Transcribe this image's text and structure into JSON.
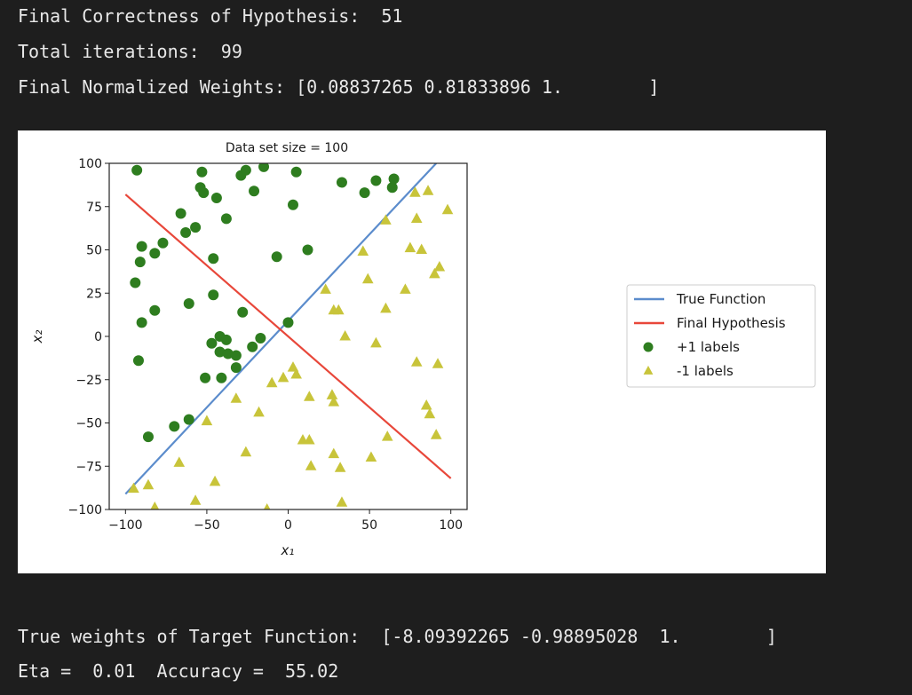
{
  "output": {
    "correctness_line": "Final Correctness of Hypothesis:  51",
    "iterations_line": "Total iterations:  99",
    "weights_line": "Final Normalized Weights: [0.08837265 0.81833896 1.        ]",
    "true_weights_line": "True weights of Target Function:  [-8.09392265 -0.98895028  1.        ]",
    "eta_line": "Eta =  0.01  Accuracy =  55.02"
  },
  "chart_data": {
    "type": "scatter",
    "title": "Data set size = 100",
    "xlabel": "x₁",
    "ylabel": "x₂",
    "xlim": [
      -110,
      110
    ],
    "ylim": [
      -100,
      100
    ],
    "xticks": [
      -100,
      -50,
      0,
      50,
      100
    ],
    "yticks": [
      -100,
      -75,
      -50,
      -25,
      0,
      25,
      50,
      75,
      100
    ],
    "xtick_labels": [
      "−100",
      "−50",
      "0",
      "50",
      "100"
    ],
    "ytick_labels": [
      "−100",
      "−75",
      "−50",
      "−25",
      "0",
      "25",
      "50",
      "75",
      "100"
    ],
    "grid": false,
    "legend_position": "right",
    "legend": [
      {
        "label": "True Function",
        "marker": "line",
        "color": "#5b8ccc"
      },
      {
        "label": "Final Hypothesis",
        "marker": "line",
        "color": "#e8473a"
      },
      {
        "label": "+1 labels",
        "marker": "circle",
        "color": "#2e7d1f"
      },
      {
        "label": "-1 labels",
        "marker": "triangle",
        "color": "#c8c43a"
      }
    ],
    "lines": [
      {
        "name": "True Function",
        "color": "#5b8ccc",
        "x": [
          -100,
          91
        ],
        "y": [
          -91,
          100
        ]
      },
      {
        "name": "Final Hypothesis",
        "color": "#e8473a",
        "x": [
          -100,
          100
        ],
        "y": [
          82,
          -82
        ]
      }
    ],
    "series": [
      {
        "name": "+1 labels",
        "marker": "circle",
        "color": "#2e7d1f",
        "points": [
          [
            -93,
            96
          ],
          [
            -53,
            95
          ],
          [
            -29,
            93
          ],
          [
            -26,
            96
          ],
          [
            -15,
            98
          ],
          [
            5,
            95
          ],
          [
            33,
            89
          ],
          [
            47,
            83
          ],
          [
            54,
            90
          ],
          [
            64,
            86
          ],
          [
            65,
            91
          ],
          [
            -54,
            86
          ],
          [
            -52,
            83
          ],
          [
            -44,
            80
          ],
          [
            -21,
            84
          ],
          [
            3,
            76
          ],
          [
            -66,
            71
          ],
          [
            -38,
            68
          ],
          [
            -57,
            63
          ],
          [
            -63,
            60
          ],
          [
            -90,
            52
          ],
          [
            -77,
            54
          ],
          [
            -82,
            48
          ],
          [
            -91,
            43
          ],
          [
            -46,
            45
          ],
          [
            -7,
            46
          ],
          [
            12,
            50
          ],
          [
            -94,
            31
          ],
          [
            -46,
            24
          ],
          [
            -61,
            19
          ],
          [
            -82,
            15
          ],
          [
            -28,
            14
          ],
          [
            -90,
            8
          ],
          [
            0,
            8
          ],
          [
            -42,
            0
          ],
          [
            -47,
            -4
          ],
          [
            -38,
            -2
          ],
          [
            -17,
            -1
          ],
          [
            -22,
            -6
          ],
          [
            -42,
            -9
          ],
          [
            -37,
            -10
          ],
          [
            -32,
            -11
          ],
          [
            -92,
            -14
          ],
          [
            -32,
            -18
          ],
          [
            -51,
            -24
          ],
          [
            -41,
            -24
          ],
          [
            -61,
            -48
          ],
          [
            -70,
            -52
          ],
          [
            -86,
            -58
          ]
        ]
      },
      {
        "name": "-1 labels",
        "marker": "triangle",
        "color": "#c8c43a",
        "points": [
          [
            78,
            83
          ],
          [
            86,
            84
          ],
          [
            98,
            73
          ],
          [
            60,
            67
          ],
          [
            79,
            68
          ],
          [
            75,
            51
          ],
          [
            82,
            50
          ],
          [
            46,
            49
          ],
          [
            90,
            36
          ],
          [
            93,
            40
          ],
          [
            49,
            33
          ],
          [
            72,
            27
          ],
          [
            23,
            27
          ],
          [
            28,
            15
          ],
          [
            31,
            15
          ],
          [
            60,
            16
          ],
          [
            35,
            0
          ],
          [
            54,
            -4
          ],
          [
            79,
            -15
          ],
          [
            92,
            -16
          ],
          [
            3,
            -18
          ],
          [
            5,
            -22
          ],
          [
            -3,
            -24
          ],
          [
            -10,
            -27
          ],
          [
            13,
            -35
          ],
          [
            27,
            -34
          ],
          [
            28,
            -38
          ],
          [
            -32,
            -36
          ],
          [
            85,
            -40
          ],
          [
            87,
            -45
          ],
          [
            -18,
            -44
          ],
          [
            -50,
            -49
          ],
          [
            91,
            -57
          ],
          [
            61,
            -58
          ],
          [
            9,
            -60
          ],
          [
            13,
            -60
          ],
          [
            -26,
            -67
          ],
          [
            28,
            -68
          ],
          [
            51,
            -70
          ],
          [
            -67,
            -73
          ],
          [
            14,
            -75
          ],
          [
            32,
            -76
          ],
          [
            -45,
            -84
          ],
          [
            -86,
            -86
          ],
          [
            -95,
            -88
          ],
          [
            -57,
            -95
          ],
          [
            33,
            -96
          ],
          [
            -82,
            -99
          ],
          [
            -13,
            -100
          ]
        ]
      }
    ]
  }
}
